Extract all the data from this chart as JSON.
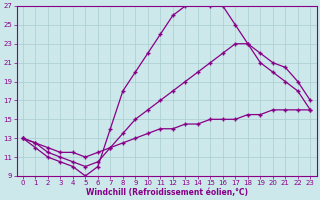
{
  "xlabel": "Windchill (Refroidissement éolien,°C)",
  "xlim": [
    -0.5,
    23.5
  ],
  "ylim": [
    9,
    27
  ],
  "xticks": [
    0,
    1,
    2,
    3,
    4,
    5,
    6,
    7,
    8,
    9,
    10,
    11,
    12,
    13,
    14,
    15,
    16,
    17,
    18,
    19,
    20,
    21,
    22,
    23
  ],
  "yticks": [
    9,
    11,
    13,
    15,
    17,
    19,
    21,
    23,
    25,
    27
  ],
  "bg_color": "#cce8ea",
  "grid_color": "#aacdd0",
  "line_color": "#880088",
  "line1_x": [
    0,
    1,
    2,
    3,
    4,
    5,
    6,
    7,
    8,
    9,
    10,
    11,
    12,
    13,
    14,
    15,
    16,
    17,
    18,
    19,
    20,
    21,
    22,
    23
  ],
  "line1_y": [
    13,
    12,
    11,
    10.5,
    10,
    9,
    10,
    14,
    18,
    20,
    22,
    24,
    26,
    27,
    27.2,
    27,
    27,
    25,
    23,
    21,
    20,
    19,
    18,
    16
  ],
  "line2_x": [
    0,
    1,
    2,
    3,
    4,
    5,
    6,
    7,
    8,
    9,
    10,
    11,
    12,
    13,
    14,
    15,
    16,
    17,
    18,
    19,
    20,
    21,
    22,
    23
  ],
  "line2_y": [
    13,
    12.5,
    11.5,
    11,
    10.5,
    10,
    10.5,
    12,
    13.5,
    15,
    16,
    17,
    18,
    19,
    20,
    21,
    22,
    23,
    23,
    22,
    21,
    20.5,
    19,
    17
  ],
  "line3_x": [
    0,
    1,
    2,
    3,
    4,
    5,
    6,
    7,
    8,
    9,
    10,
    11,
    12,
    13,
    14,
    15,
    16,
    17,
    18,
    19,
    20,
    21,
    22,
    23
  ],
  "line3_y": [
    13,
    12.5,
    12,
    11.5,
    11.5,
    11,
    11.5,
    12,
    12.5,
    13,
    13.5,
    14,
    14,
    14.5,
    14.5,
    15,
    15,
    15,
    15.5,
    15.5,
    16,
    16,
    16,
    16
  ]
}
